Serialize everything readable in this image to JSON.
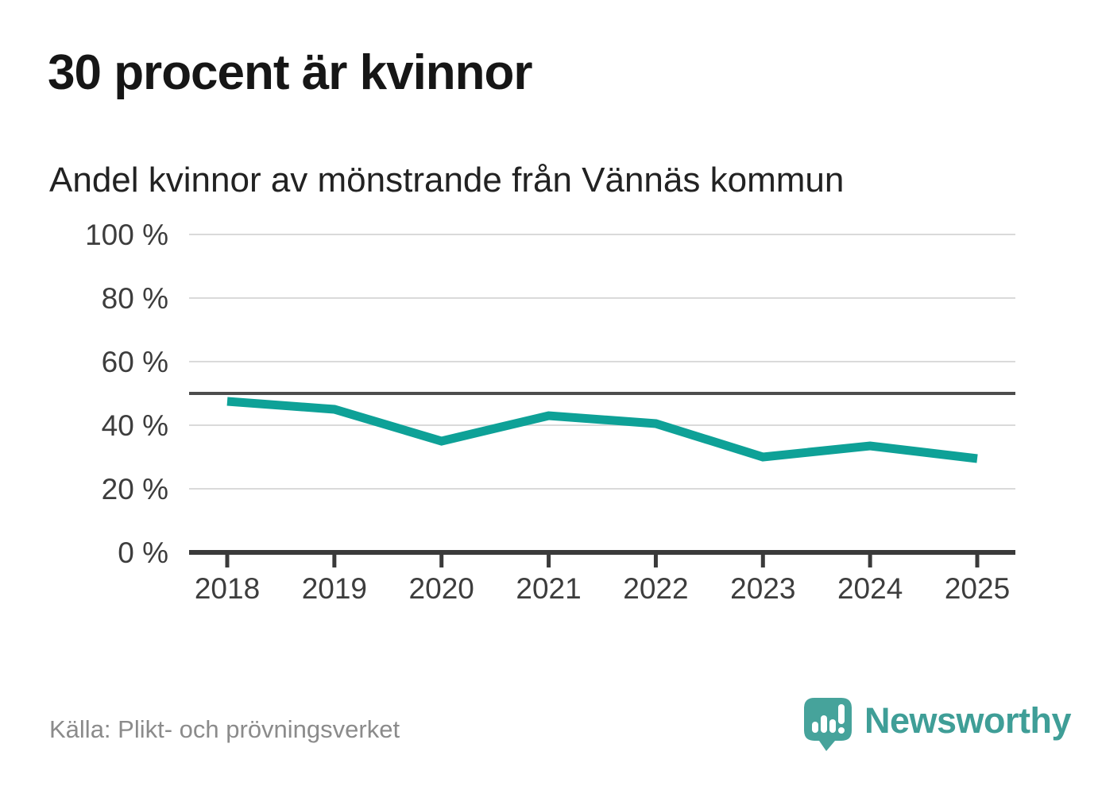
{
  "chart_data": {
    "type": "line",
    "title": "30 procent är kvinnor",
    "subtitle": "Andel kvinnor av mönstrande från Vännäs kommun",
    "categories": [
      "2018",
      "2019",
      "2020",
      "2021",
      "2022",
      "2023",
      "2024",
      "2025"
    ],
    "values": [
      47.5,
      45,
      35,
      43,
      40.5,
      30,
      33.5,
      29.5
    ],
    "unit": "%",
    "ylim": [
      0,
      100
    ],
    "yticks": [
      0,
      20,
      40,
      60,
      80,
      100
    ],
    "ytick_format": "{v} %",
    "reference_line": 50,
    "grid": true,
    "legend": "none",
    "line_color": "#0ea197"
  },
  "source": "Källa: Plikt- och prövningsverket",
  "logo": {
    "text": "Newsworthy",
    "text_color": "#3f9e97",
    "bubble_color": "#46a39b"
  },
  "colors": {
    "grid": "#dadada",
    "axis": "#3a3a3a",
    "reference": "#4d4d4d",
    "tick_label": "#3d3d3d",
    "title_text": "#161616",
    "source_text": "#8b8b8b"
  }
}
